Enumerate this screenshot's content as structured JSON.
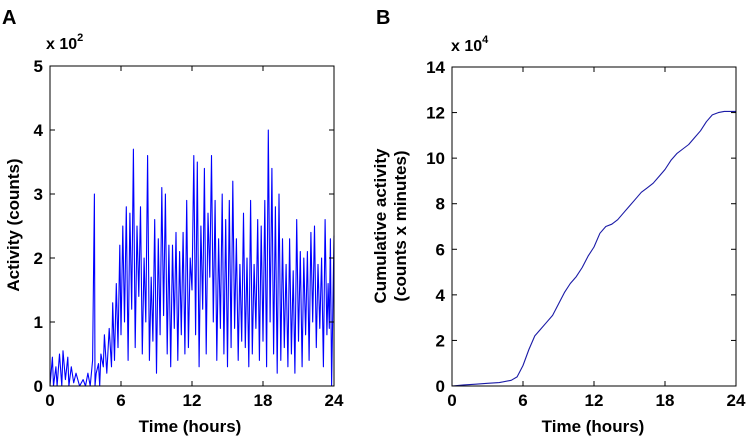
{
  "chart_data": [
    {
      "panel_label": "A",
      "type": "line",
      "xlabel": "Time (hours)",
      "ylabel": "Activity (counts)",
      "xlim": [
        0,
        24
      ],
      "ylim": [
        0,
        5
      ],
      "xticks": [
        "0",
        "6",
        "12",
        "18",
        "24"
      ],
      "yticks": [
        "0",
        "1",
        "2",
        "3",
        "4",
        "5"
      ],
      "multiplier_base": "x 10",
      "multiplier_exp": "2",
      "line_color": "#0000ff",
      "grid": false,
      "series": [
        {
          "name": "Activity",
          "x": [
            0,
            0.2,
            0.3,
            0.5,
            0.6,
            0.8,
            1.0,
            1.1,
            1.3,
            1.5,
            1.6,
            1.8,
            2.0,
            2.2,
            2.5,
            2.8,
            3.0,
            3.2,
            3.4,
            3.6,
            3.75,
            3.8,
            3.9,
            4.1,
            4.2,
            4.3,
            4.5,
            4.6,
            4.8,
            5.0,
            5.2,
            5.3,
            5.45,
            5.6,
            5.75,
            5.9,
            6.0,
            6.15,
            6.3,
            6.45,
            6.6,
            6.75,
            6.9,
            7.05,
            7.2,
            7.35,
            7.5,
            7.65,
            7.8,
            7.95,
            8.1,
            8.25,
            8.4,
            8.55,
            8.7,
            8.85,
            9.0,
            9.15,
            9.3,
            9.45,
            9.6,
            9.75,
            9.9,
            10.05,
            10.2,
            10.35,
            10.5,
            10.65,
            10.8,
            10.95,
            11.1,
            11.25,
            11.4,
            11.55,
            11.7,
            11.85,
            12.0,
            12.15,
            12.3,
            12.45,
            12.6,
            12.75,
            12.9,
            13.05,
            13.2,
            13.35,
            13.5,
            13.65,
            13.8,
            13.95,
            14.1,
            14.25,
            14.4,
            14.55,
            14.7,
            14.85,
            15.0,
            15.15,
            15.3,
            15.45,
            15.6,
            15.75,
            15.9,
            16.05,
            16.2,
            16.35,
            16.5,
            16.65,
            16.8,
            16.95,
            17.1,
            17.25,
            17.4,
            17.55,
            17.7,
            17.85,
            18.0,
            18.15,
            18.3,
            18.45,
            18.6,
            18.75,
            18.9,
            19.05,
            19.2,
            19.35,
            19.5,
            19.65,
            19.8,
            19.95,
            20.1,
            20.25,
            20.4,
            20.55,
            20.7,
            20.85,
            21.0,
            21.15,
            21.3,
            21.45,
            21.6,
            21.75,
            21.9,
            22.05,
            22.2,
            22.35,
            22.5,
            22.65,
            22.8,
            22.95,
            23.1,
            23.25,
            23.4,
            23.5,
            23.6,
            23.7,
            23.8,
            24.0
          ],
          "values": [
            0,
            0.45,
            0,
            0.3,
            0,
            0.5,
            0,
            0.55,
            0.1,
            0.45,
            0,
            0.3,
            0.05,
            0.2,
            0,
            0.1,
            0,
            0.2,
            0,
            0.4,
            3.0,
            0,
            0.2,
            0.35,
            0,
            0.5,
            0.3,
            0.8,
            0.2,
            0.9,
            0.3,
            1.3,
            0.4,
            1.6,
            0.6,
            2.2,
            0.8,
            2.5,
            1.0,
            2.8,
            0.4,
            2.7,
            1.2,
            3.7,
            0.6,
            2.5,
            1.4,
            2.8,
            0.5,
            2.0,
            1.0,
            3.6,
            0.4,
            1.7,
            0.7,
            2.6,
            0.2,
            2.3,
            0.8,
            3.1,
            1.1,
            3.0,
            0.5,
            2.2,
            0.3,
            2.2,
            0.9,
            2.4,
            0.4,
            2.1,
            0.8,
            2.4,
            0.5,
            2.9,
            0.6,
            2.0,
            1.5,
            3.6,
            0.8,
            3.5,
            0.3,
            2.5,
            1.2,
            3.4,
            0.5,
            2.7,
            1.7,
            3.6,
            1.0,
            2.9,
            0.4,
            2.3,
            0.9,
            3.0,
            0.5,
            2.6,
            0.3,
            2.9,
            0.6,
            3.2,
            0.9,
            2.3,
            0.4,
            1.9,
            0.7,
            2.7,
            0.6,
            2.0,
            0.3,
            2.9,
            0.5,
            1.9,
            0.9,
            2.6,
            0.4,
            2.5,
            0.7,
            2.9,
            0.3,
            4.0,
            1.0,
            3.4,
            0.5,
            2.8,
            0.2,
            3.0,
            0.4,
            2.3,
            0.6,
            1.9,
            0.3,
            2.3,
            0.5,
            1.8,
            0.2,
            2.6,
            0.7,
            2.1,
            0.3,
            2.0,
            0.8,
            2.1,
            0.4,
            2.4,
            1.0,
            2.5,
            0.6,
            1.9,
            0.9,
            2.0,
            0.3,
            2.6,
            0.8,
            1.6,
            0.9,
            2.3,
            0,
            2.35
          ]
        }
      ]
    },
    {
      "panel_label": "B",
      "type": "line",
      "xlabel": "Time (hours)",
      "ylabel_line1": "Cumulative activity",
      "ylabel_line2": "(counts x minutes)",
      "xlim": [
        0,
        24
      ],
      "ylim": [
        0,
        14
      ],
      "xticks": [
        "0",
        "6",
        "12",
        "18",
        "24"
      ],
      "yticks": [
        "0",
        "2",
        "4",
        "6",
        "8",
        "10",
        "12",
        "14"
      ],
      "multiplier_base": "x 10",
      "multiplier_exp": "4",
      "line_color": "#1a1aa6",
      "grid": false,
      "series": [
        {
          "name": "Cumulative activity",
          "x": [
            0,
            1,
            2,
            3,
            4,
            5,
            5.5,
            6,
            6.5,
            7,
            7.5,
            8,
            8.5,
            9,
            9.5,
            10,
            10.5,
            11,
            11.5,
            12,
            12.5,
            13,
            13.5,
            14,
            14.5,
            15,
            15.5,
            16,
            16.5,
            17,
            17.5,
            18,
            18.5,
            19,
            19.5,
            20,
            20.5,
            21,
            21.5,
            22,
            22.5,
            23,
            23.5,
            24
          ],
          "values": [
            0,
            0.05,
            0.08,
            0.12,
            0.15,
            0.25,
            0.4,
            0.9,
            1.6,
            2.2,
            2.5,
            2.8,
            3.1,
            3.6,
            4.1,
            4.5,
            4.8,
            5.2,
            5.7,
            6.1,
            6.7,
            7.0,
            7.1,
            7.3,
            7.6,
            7.9,
            8.2,
            8.5,
            8.7,
            8.9,
            9.2,
            9.5,
            9.9,
            10.2,
            10.4,
            10.6,
            10.9,
            11.2,
            11.6,
            11.9,
            12.0,
            12.05,
            12.05,
            12.05
          ]
        }
      ]
    }
  ]
}
